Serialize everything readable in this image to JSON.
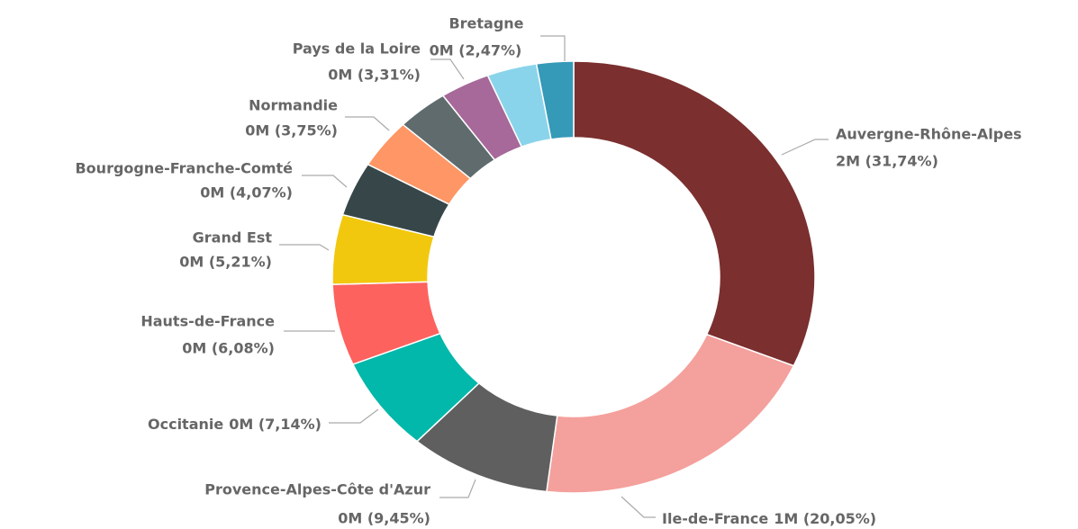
{
  "chart_data": {
    "type": "donut",
    "categories": [
      "Auvergne-Rhône-Alpes",
      "Ile-de-France",
      "Provence-Alpes-Côte d'Azur",
      "Occitanie",
      "Hauts-de-France",
      "Grand Est",
      "Bourgogne-Franche-Comté",
      "Normandie",
      null,
      "Pays de la Loire",
      null,
      "Bretagne"
    ],
    "values": [
      31.74,
      20.05,
      9.45,
      7.14,
      6.08,
      5.21,
      4.07,
      3.75,
      3.4,
      3.31,
      3.33,
      2.47
    ],
    "value_labels": [
      "2M (31,74%)",
      "1M (20,05%)",
      "0M (9,45%)",
      "0M (7,14%)",
      "0M (6,08%)",
      "0M (5,21%)",
      "0M (4,07%)",
      "0M (3,75%)",
      null,
      "0M (3,31%)",
      null,
      "0M (2,47%)"
    ],
    "colors": [
      "#7b2f2f",
      "#f4a09c",
      "#5f5f5f",
      "#01b8aa",
      "#fd625e",
      "#f2c80f",
      "#374649",
      "#fe9666",
      "#5f6b6d",
      "#a66999",
      "#8ad4eb",
      "#3599b8"
    ]
  }
}
